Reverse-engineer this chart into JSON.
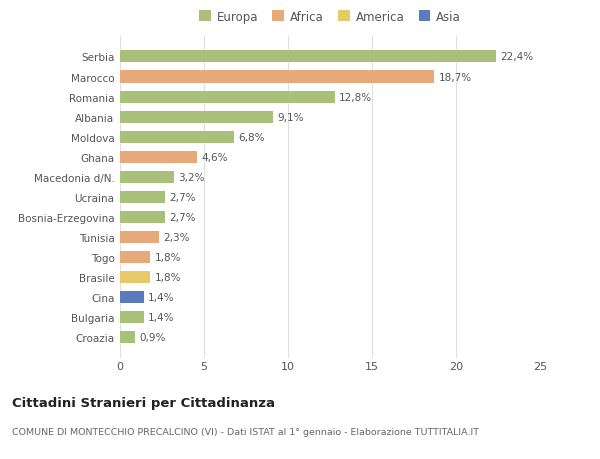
{
  "countries": [
    "Serbia",
    "Marocco",
    "Romania",
    "Albania",
    "Moldova",
    "Ghana",
    "Macedonia d/N.",
    "Ucraina",
    "Bosnia-Erzegovina",
    "Tunisia",
    "Togo",
    "Brasile",
    "Cina",
    "Bulgaria",
    "Croazia"
  ],
  "values": [
    22.4,
    18.7,
    12.8,
    9.1,
    6.8,
    4.6,
    3.2,
    2.7,
    2.7,
    2.3,
    1.8,
    1.8,
    1.4,
    1.4,
    0.9
  ],
  "labels": [
    "22,4%",
    "18,7%",
    "12,8%",
    "9,1%",
    "6,8%",
    "4,6%",
    "3,2%",
    "2,7%",
    "2,7%",
    "2,3%",
    "1,8%",
    "1,8%",
    "1,4%",
    "1,4%",
    "0,9%"
  ],
  "continent": [
    "Europa",
    "Africa",
    "Europa",
    "Europa",
    "Europa",
    "Africa",
    "Europa",
    "Europa",
    "Europa",
    "Africa",
    "Africa",
    "America",
    "Asia",
    "Europa",
    "Europa"
  ],
  "colors": {
    "Europa": "#a8c07a",
    "Africa": "#e8a97a",
    "America": "#e8c96a",
    "Asia": "#5b7bbf"
  },
  "title": "Cittadini Stranieri per Cittadinanza",
  "subtitle": "COMUNE DI MONTECCHIO PRECALCINO (VI) - Dati ISTAT al 1° gennaio - Elaborazione TUTTITALIA.IT",
  "xlim": [
    0,
    25
  ],
  "xticks": [
    0,
    5,
    10,
    15,
    20,
    25
  ],
  "background_color": "#ffffff",
  "grid_color": "#e0e0e0",
  "legend_order": [
    "Europa",
    "Africa",
    "America",
    "Asia"
  ]
}
